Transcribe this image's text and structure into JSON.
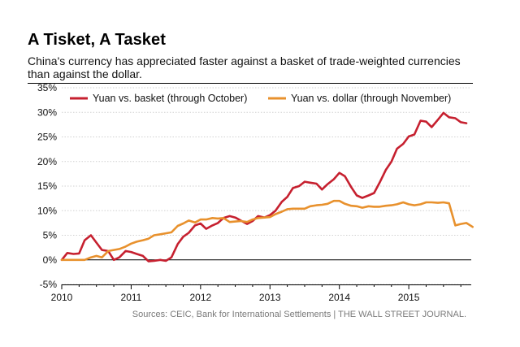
{
  "title": "A Tisket, A Tasket",
  "subtitle": "China's currency has appreciated faster against a basket of trade-weighted currencies than against the dollar.",
  "source": "Sources: CEIC, Bank for International Settlements  |  THE WALL STREET JOURNAL.",
  "chart_data": {
    "type": "line",
    "ylim": [
      -5,
      35
    ],
    "xlim": [
      2010,
      2015.9
    ],
    "y_ticks": [
      "35%",
      "30%",
      "25%",
      "20%",
      "15%",
      "10%",
      "5%",
      "0%",
      "-5%"
    ],
    "x_ticks": [
      "2010",
      "2011",
      "2012",
      "2013",
      "2014",
      "2015"
    ],
    "grid": true,
    "legend_position": "top",
    "series": [
      {
        "name": "Yuan vs. basket (through October)",
        "color": "#c6202f",
        "x": [
          2010.0,
          2010.08,
          2010.17,
          2010.25,
          2010.33,
          2010.42,
          2010.5,
          2010.58,
          2010.67,
          2010.75,
          2010.83,
          2010.92,
          2011.0,
          2011.08,
          2011.17,
          2011.25,
          2011.33,
          2011.42,
          2011.5,
          2011.58,
          2011.67,
          2011.75,
          2011.83,
          2011.92,
          2012.0,
          2012.08,
          2012.17,
          2012.25,
          2012.33,
          2012.42,
          2012.5,
          2012.58,
          2012.67,
          2012.75,
          2012.83,
          2012.92,
          2013.0,
          2013.08,
          2013.17,
          2013.25,
          2013.33,
          2013.42,
          2013.5,
          2013.58,
          2013.67,
          2013.75,
          2013.83,
          2013.92,
          2014.0,
          2014.08,
          2014.17,
          2014.25,
          2014.33,
          2014.42,
          2014.5,
          2014.58,
          2014.67,
          2014.75,
          2014.83,
          2014.92,
          2015.0,
          2015.08,
          2015.17,
          2015.25,
          2015.33,
          2015.42,
          2015.5,
          2015.58,
          2015.67,
          2015.75,
          2015.83
        ],
        "values": [
          0.0,
          1.4,
          1.2,
          1.3,
          4.0,
          5.0,
          3.5,
          2.0,
          1.8,
          0.0,
          0.5,
          1.8,
          1.6,
          1.2,
          0.8,
          -0.3,
          -0.2,
          0.0,
          -0.2,
          0.5,
          3.2,
          4.7,
          5.5,
          7.0,
          7.4,
          6.3,
          7.0,
          7.5,
          8.5,
          8.9,
          8.6,
          8.0,
          7.3,
          7.9,
          8.9,
          8.6,
          9.1,
          10.0,
          11.8,
          12.8,
          14.6,
          15.0,
          15.9,
          15.7,
          15.5,
          14.3,
          15.4,
          16.4,
          17.7,
          17.0,
          14.8,
          13.1,
          12.6,
          13.1,
          13.6,
          15.7,
          18.3,
          20.0,
          22.6,
          23.6,
          25.1,
          25.5,
          28.3,
          28.1,
          27.0,
          28.5,
          29.9,
          29.0,
          28.8,
          28.0,
          27.8
        ]
      },
      {
        "name": "Yuan vs. dollar (through November)",
        "color": "#e8912d",
        "x": [
          2010.0,
          2010.08,
          2010.17,
          2010.25,
          2010.33,
          2010.42,
          2010.5,
          2010.58,
          2010.67,
          2010.75,
          2010.83,
          2010.92,
          2011.0,
          2011.08,
          2011.17,
          2011.25,
          2011.33,
          2011.42,
          2011.5,
          2011.58,
          2011.67,
          2011.75,
          2011.83,
          2011.92,
          2012.0,
          2012.08,
          2012.17,
          2012.25,
          2012.33,
          2012.42,
          2012.5,
          2012.58,
          2012.67,
          2012.75,
          2012.83,
          2012.92,
          2013.0,
          2013.08,
          2013.17,
          2013.25,
          2013.33,
          2013.42,
          2013.5,
          2013.58,
          2013.67,
          2013.75,
          2013.83,
          2013.92,
          2014.0,
          2014.08,
          2014.17,
          2014.25,
          2014.33,
          2014.42,
          2014.5,
          2014.58,
          2014.67,
          2014.75,
          2014.83,
          2014.92,
          2015.0,
          2015.08,
          2015.17,
          2015.25,
          2015.33,
          2015.42,
          2015.5,
          2015.58,
          2015.67,
          2015.75,
          2015.83,
          2015.92
        ],
        "values": [
          0.0,
          0.0,
          0.0,
          0.0,
          0.0,
          0.5,
          0.8,
          0.5,
          1.8,
          2.0,
          2.2,
          2.7,
          3.3,
          3.7,
          4.0,
          4.3,
          5.0,
          5.2,
          5.4,
          5.6,
          6.9,
          7.4,
          8.0,
          7.6,
          8.2,
          8.2,
          8.5,
          8.4,
          8.5,
          7.7,
          7.8,
          7.9,
          7.7,
          8.2,
          8.5,
          8.6,
          8.7,
          9.3,
          9.8,
          10.3,
          10.4,
          10.4,
          10.4,
          10.9,
          11.1,
          11.2,
          11.4,
          12.0,
          12.0,
          11.4,
          11.0,
          10.9,
          10.6,
          10.9,
          10.8,
          10.8,
          11.0,
          11.1,
          11.3,
          11.7,
          11.3,
          11.1,
          11.3,
          11.7,
          11.7,
          11.6,
          11.7,
          11.5,
          7.0,
          7.3,
          7.5,
          6.7
        ]
      }
    ]
  }
}
